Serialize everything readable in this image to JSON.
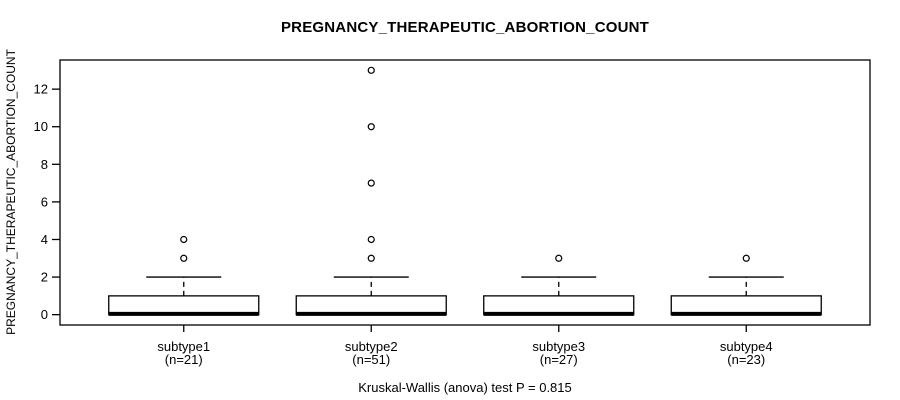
{
  "chart_data": {
    "type": "boxplot",
    "title": "PREGNANCY_THERAPEUTIC_ABORTION_COUNT",
    "ylabel": "PREGNANCY_THERAPEUTIC_ABORTION_COUNT",
    "xlabel": "",
    "footer": "Kruskal-Wallis (anova) test P = 0.815",
    "y_ticks": [
      0,
      2,
      4,
      6,
      8,
      10,
      12
    ],
    "ylim": [
      -0.55,
      13.55
    ],
    "grid": false,
    "legend": "none",
    "groups": [
      {
        "label": "subtype1",
        "sublabel": "(n=21)",
        "n": 21,
        "q1": 0,
        "median": 0,
        "q3": 1,
        "whisker_low": 0,
        "whisker_high": 2,
        "outliers": [
          3,
          4
        ]
      },
      {
        "label": "subtype2",
        "sublabel": "(n=51)",
        "n": 51,
        "q1": 0,
        "median": 0,
        "q3": 1,
        "whisker_low": 0,
        "whisker_high": 2,
        "outliers": [
          3,
          4,
          7,
          10,
          13
        ]
      },
      {
        "label": "subtype3",
        "sublabel": "(n=27)",
        "n": 27,
        "q1": 0,
        "median": 0,
        "q3": 1,
        "whisker_low": 0,
        "whisker_high": 2,
        "outliers": [
          3
        ]
      },
      {
        "label": "subtype4",
        "sublabel": "(n=23)",
        "n": 23,
        "q1": 0,
        "median": 0,
        "q3": 1,
        "whisker_low": 0,
        "whisker_high": 2,
        "outliers": [
          3
        ]
      }
    ],
    "colors": {
      "stroke": "#000000",
      "box_fill": "#ffffff",
      "background": "#ffffff",
      "text": "#000000"
    }
  }
}
